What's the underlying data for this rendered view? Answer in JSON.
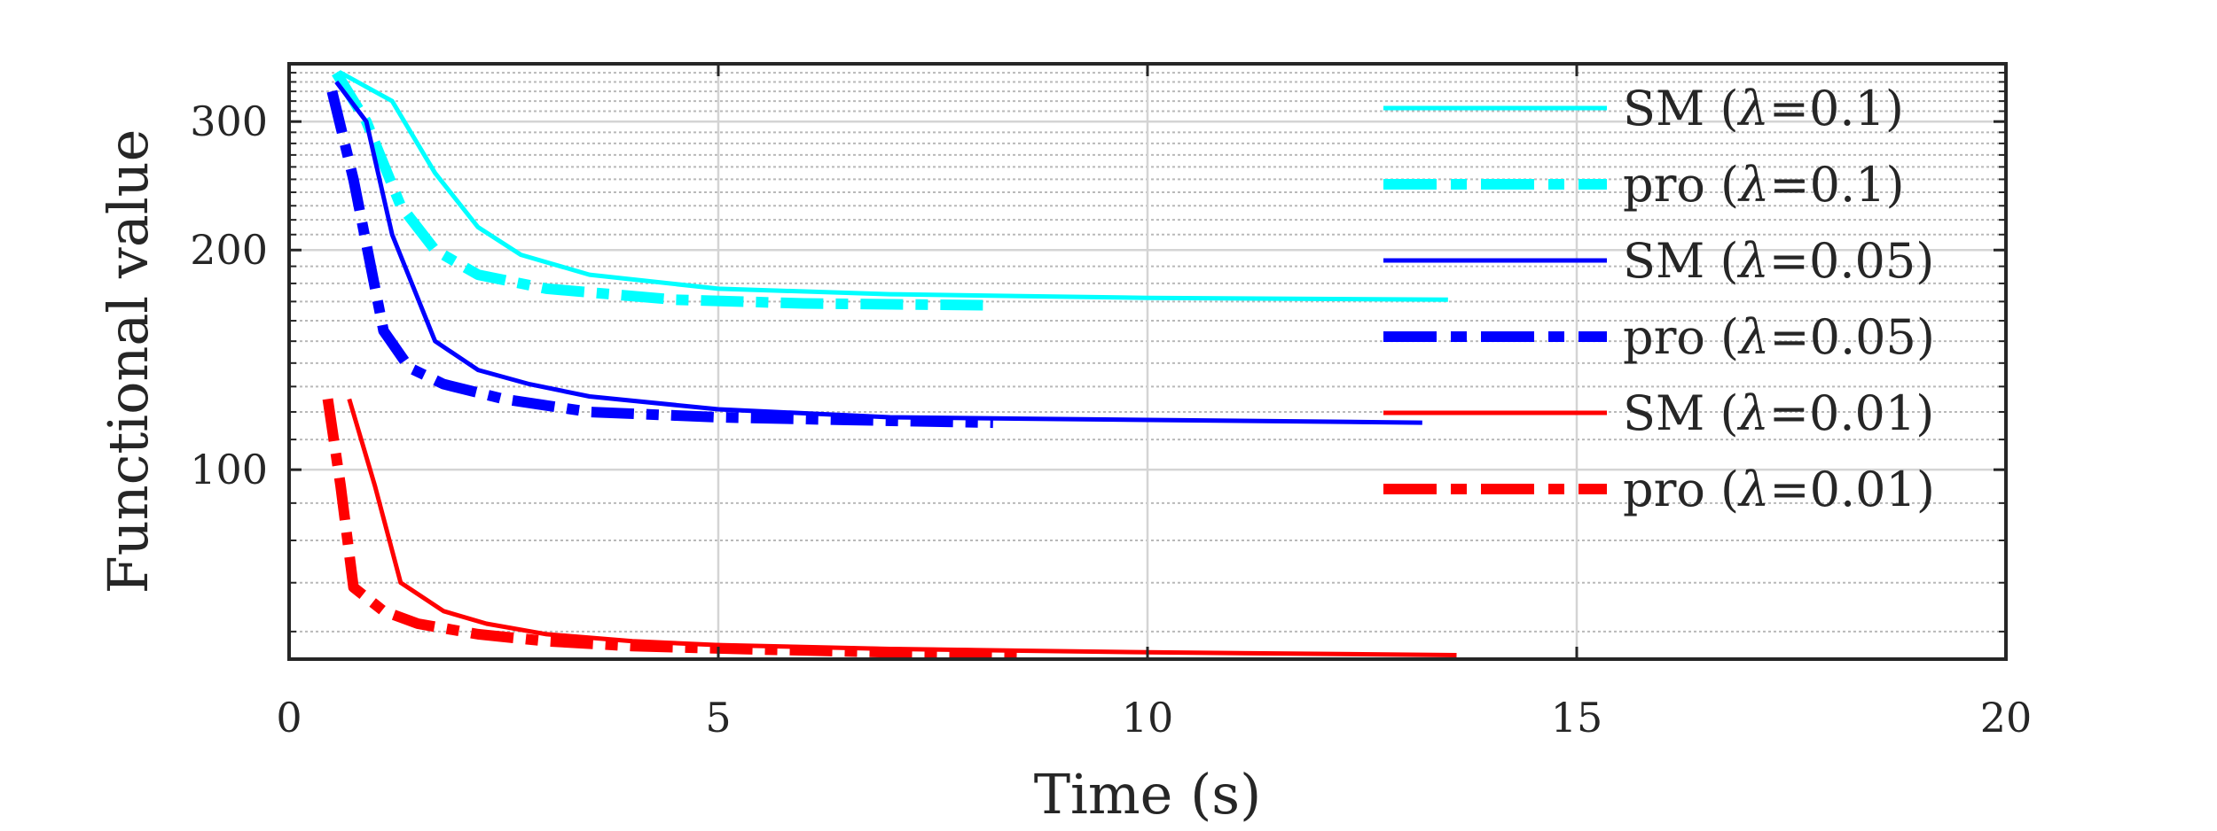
{
  "chart_data": {
    "type": "line",
    "title": "",
    "xlabel": "Time (s)",
    "ylabel": "Functional value",
    "xlim": [
      0,
      20
    ],
    "ylim": [
      55,
      360
    ],
    "yscale": "log",
    "grid": true,
    "minor_grid": true,
    "legend_position": "top-right",
    "xticks": [
      0,
      5,
      10,
      15,
      20
    ],
    "xtick_labels": [
      "0",
      "5",
      "10",
      "15",
      "20"
    ],
    "yticks": [
      100,
      200,
      300
    ],
    "ytick_labels": [
      "100",
      "200",
      "300"
    ],
    "series": [
      {
        "name": "SM (λ=0.1)",
        "label_main": "SM (",
        "label_param": "=0.1)",
        "color": "#00FFFF",
        "style": "solid",
        "weight": "thin",
        "x": [
          0.6,
          1.2,
          1.7,
          2.2,
          2.7,
          3.5,
          5,
          7,
          10,
          13.5
        ],
        "y": [
          350,
          320,
          255,
          215,
          197,
          185,
          177,
          174,
          172,
          171
        ]
      },
      {
        "name": "pro (λ=0.1)",
        "label_main": "pro (",
        "label_param": "=0.1)",
        "color": "#00FFFF",
        "style": "dashdot",
        "weight": "thick",
        "x": [
          0.55,
          0.9,
          1.3,
          1.7,
          2.2,
          3,
          4.5,
          6,
          8.2
        ],
        "y": [
          350,
          300,
          230,
          200,
          185,
          177,
          171,
          169,
          168
        ]
      },
      {
        "name": "SM (λ=0.05)",
        "label_main": "SM (",
        "label_param": "=0.05)",
        "color": "#0000FF",
        "style": "solid",
        "weight": "thin",
        "x": [
          0.55,
          0.9,
          1.2,
          1.7,
          2.2,
          2.8,
          3.5,
          5,
          7,
          10,
          13.2
        ],
        "y": [
          340,
          300,
          210,
          150,
          137,
          131,
          126,
          121,
          118,
          117,
          116
        ]
      },
      {
        "name": "pro (λ=0.05)",
        "label_main": "pro (",
        "label_param": "=0.05)",
        "color": "#0000FF",
        "style": "dashdot",
        "weight": "thick",
        "x": [
          0.5,
          0.75,
          1.1,
          1.4,
          1.8,
          2.5,
          3.5,
          5,
          6.5,
          8.2
        ],
        "y": [
          330,
          250,
          155,
          138,
          131,
          125,
          120,
          118,
          117,
          116
        ]
      },
      {
        "name": "SM (λ=0.01)",
        "label_main": "SM (",
        "label_param": "=0.01)",
        "color": "#FF0000",
        "style": "solid",
        "weight": "thin",
        "x": [
          0.7,
          1.0,
          1.3,
          1.8,
          2.3,
          3,
          4,
          5,
          7,
          10,
          13.6
        ],
        "y": [
          125,
          95,
          70,
          64,
          61.5,
          59.5,
          58.2,
          57.5,
          56.8,
          56.2,
          55.7
        ]
      },
      {
        "name": "pro (λ=0.01)",
        "label_main": "pro (",
        "label_param": "=0.01)",
        "color": "#FF0000",
        "style": "dashdot",
        "weight": "thick",
        "x": [
          0.45,
          0.6,
          0.75,
          1.1,
          1.5,
          2.2,
          3,
          4,
          5.5,
          7,
          8.5
        ],
        "y": [
          125,
          95,
          69,
          64,
          61.5,
          59.5,
          58.2,
          57.3,
          56.7,
          56.2,
          55.9
        ]
      }
    ]
  }
}
